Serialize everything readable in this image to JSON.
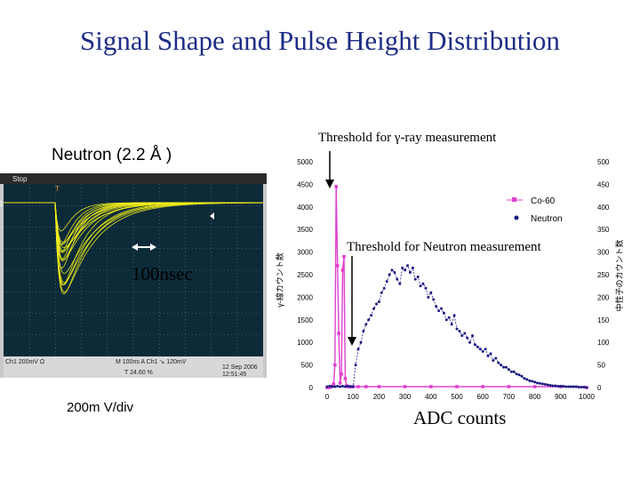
{
  "slide": {
    "title": "Signal Shape and Pulse Height Distribution",
    "neutron_label": "Neutron (2.2 Å )",
    "time_scale": "100nsec",
    "volt_scale": "200m V/div",
    "threshold_gamma": "Threshold for γ-ray measurement",
    "threshold_neutron": "Threshold for Neutron measurement",
    "xlabel": "ADC counts"
  },
  "scope": {
    "status": "Stop",
    "ch_marker": "1",
    "trig_marker": "T",
    "bottom_left": "Ch1  200mV Ω",
    "bottom_mid": "M 100ns  A  Ch1  ↘  120mV",
    "bottom_mid2": "T  24.60 %",
    "date": "12 Sep 2006",
    "time": "12:51:45",
    "colors": {
      "bg": "#0c2a38",
      "trace": "#f2ee1a",
      "grid": "#5c7a8a",
      "panel": "#c9c9c9",
      "frame": "#2a2a2a"
    }
  },
  "chart_data": {
    "type": "scatter",
    "xlabel": "ADC counts",
    "ylabel_left": "γ-線カウント数",
    "ylabel_right": "中性子のカウント数",
    "xlim": [
      0,
      1000
    ],
    "ylim_left": [
      0,
      5000
    ],
    "ylim_right": [
      0,
      500
    ],
    "x_ticks": [
      0,
      100,
      200,
      300,
      400,
      500,
      600,
      700,
      800,
      900,
      1000
    ],
    "y_left_ticks": [
      0,
      500,
      1000,
      1500,
      2000,
      2500,
      3000,
      3500,
      4000,
      4500,
      5000
    ],
    "y_right_ticks": [
      0,
      50,
      100,
      150,
      200,
      250,
      300,
      350,
      400,
      450,
      500
    ],
    "legend": {
      "position": "top-right",
      "entries": [
        "Co-60",
        "Neutron"
      ]
    },
    "series": [
      {
        "name": "Co-60",
        "axis": "left",
        "color": "#e040d0",
        "x": [
          0,
          10,
          20,
          25,
          30,
          35,
          40,
          45,
          50,
          55,
          60,
          65,
          70,
          75,
          80,
          90,
          100,
          120,
          150,
          200,
          300,
          400,
          500,
          600,
          700,
          800,
          900,
          1000
        ],
        "y": [
          0,
          0,
          30,
          80,
          500,
          4450,
          2700,
          1200,
          100,
          300,
          2600,
          2900,
          200,
          40,
          20,
          20,
          20,
          20,
          20,
          20,
          20,
          20,
          20,
          20,
          20,
          20,
          20,
          0
        ]
      },
      {
        "name": "Neutron",
        "axis": "right",
        "color": "#1a1a80",
        "x": [
          0,
          10,
          20,
          30,
          40,
          50,
          60,
          70,
          80,
          90,
          100,
          110,
          120,
          130,
          140,
          150,
          160,
          170,
          180,
          190,
          200,
          210,
          220,
          230,
          240,
          250,
          260,
          270,
          280,
          290,
          300,
          310,
          320,
          330,
          340,
          350,
          360,
          370,
          380,
          390,
          400,
          410,
          420,
          430,
          440,
          450,
          460,
          470,
          480,
          490,
          500,
          510,
          520,
          530,
          540,
          550,
          560,
          570,
          580,
          590,
          600,
          610,
          620,
          630,
          640,
          650,
          660,
          670,
          680,
          690,
          700,
          710,
          720,
          730,
          740,
          750,
          760,
          770,
          780,
          790,
          800,
          810,
          820,
          830,
          840,
          850,
          860,
          870,
          880,
          890,
          900,
          910,
          920,
          930,
          940,
          950,
          960,
          970,
          980,
          990,
          1000
        ],
        "y": [
          2,
          3,
          2,
          2,
          3,
          2,
          3,
          2,
          3,
          2,
          2,
          50,
          85,
          100,
          125,
          140,
          150,
          160,
          175,
          185,
          190,
          210,
          220,
          235,
          250,
          260,
          255,
          240,
          230,
          265,
          260,
          270,
          255,
          265,
          240,
          245,
          225,
          230,
          220,
          200,
          210,
          195,
          180,
          170,
          175,
          165,
          150,
          155,
          140,
          160,
          130,
          125,
          115,
          120,
          110,
          100,
          115,
          95,
          90,
          85,
          80,
          85,
          70,
          75,
          60,
          65,
          55,
          50,
          45,
          45,
          40,
          35,
          35,
          30,
          28,
          25,
          20,
          18,
          15,
          14,
          12,
          10,
          9,
          8,
          7,
          6,
          5,
          4,
          4,
          3,
          3,
          3,
          2,
          2,
          2,
          2,
          2,
          1,
          1,
          1,
          0
        ]
      }
    ]
  }
}
